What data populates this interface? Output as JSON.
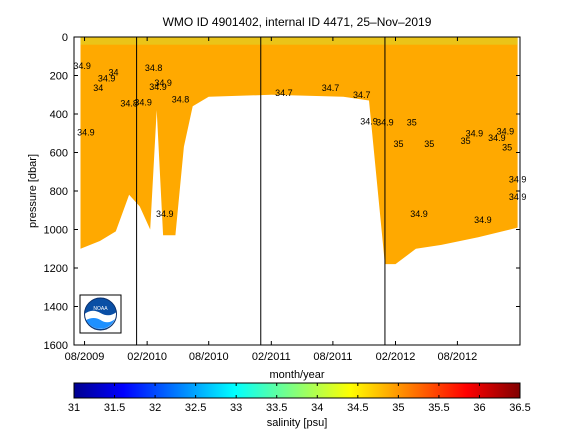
{
  "chart_data": {
    "type": "heatmap",
    "title": "WMO ID 4901402, internal ID 4471, 25–Nov–2019",
    "xlabel": "month/year",
    "ylabel": "pressure [dbar]",
    "x_tick_labels": [
      "08/2009",
      "02/2010",
      "08/2010",
      "02/2011",
      "08/2011",
      "02/2012",
      "08/2012"
    ],
    "x_tick_dates": [
      "2009-08",
      "2010-02",
      "2010-08",
      "2011-02",
      "2011-08",
      "2012-02",
      "2012-08"
    ],
    "xlim": [
      "2009-07",
      "2013-02"
    ],
    "ylim": [
      1600,
      0
    ],
    "y_ticks": [
      0,
      200,
      400,
      600,
      800,
      1000,
      1200,
      1400,
      1600
    ],
    "y_reversed": true,
    "colorbar": {
      "label": "salinity [psu]",
      "ticks": [
        31,
        31.5,
        32,
        32.5,
        33,
        33.5,
        34,
        34.5,
        35,
        35.5,
        36,
        36.5
      ],
      "range": [
        31,
        36.5
      ],
      "colormap": "jet"
    },
    "profile_depth_limit": [
      {
        "date": "2009-07-20",
        "max_pressure": 1100
      },
      {
        "date": "2009-09-15",
        "max_pressure": 1060
      },
      {
        "date": "2009-11-01",
        "max_pressure": 1010
      },
      {
        "date": "2009-12-10",
        "max_pressure": 820
      },
      {
        "date": "2010-01-10",
        "max_pressure": 880
      },
      {
        "date": "2010-02-10",
        "max_pressure": 1000
      },
      {
        "date": "2010-03-01",
        "max_pressure": 380
      },
      {
        "date": "2010-03-20",
        "max_pressure": 1030
      },
      {
        "date": "2010-04-25",
        "max_pressure": 1030
      },
      {
        "date": "2010-05-20",
        "max_pressure": 570
      },
      {
        "date": "2010-06-15",
        "max_pressure": 360
      },
      {
        "date": "2010-08-01",
        "max_pressure": 310
      },
      {
        "date": "2011-02-01",
        "max_pressure": 300
      },
      {
        "date": "2011-09-01",
        "max_pressure": 310
      },
      {
        "date": "2011-11-15",
        "max_pressure": 330
      },
      {
        "date": "2012-01-01",
        "max_pressure": 1180
      },
      {
        "date": "2012-02-01",
        "max_pressure": 1180
      },
      {
        "date": "2012-04-01",
        "max_pressure": 1100
      },
      {
        "date": "2012-06-15",
        "max_pressure": 1080
      },
      {
        "date": "2012-10-01",
        "max_pressure": 1040
      },
      {
        "date": "2013-01-25",
        "max_pressure": 990
      }
    ],
    "deep_water_salinity": 34.9,
    "contour_labels": [
      {
        "text": "34.9",
        "date": "2009-07-25",
        "pressure": 150
      },
      {
        "text": "34.9",
        "date": "2009-10-05",
        "pressure": 215
      },
      {
        "text": "34",
        "date": "2009-10-25",
        "pressure": 185
      },
      {
        "text": "34",
        "date": "2009-09-10",
        "pressure": 265
      },
      {
        "text": "34.8",
        "date": "2009-12-10",
        "pressure": 345
      },
      {
        "text": "34.9",
        "date": "2010-01-20",
        "pressure": 340
      },
      {
        "text": "34.8",
        "date": "2010-02-20",
        "pressure": 160
      },
      {
        "text": "34.9",
        "date": "2010-03-05",
        "pressure": 260
      },
      {
        "text": "34.9",
        "date": "2010-03-20",
        "pressure": 240
      },
      {
        "text": "34.8",
        "date": "2010-05-10",
        "pressure": 325
      },
      {
        "text": "34.9",
        "date": "2009-08-05",
        "pressure": 495
      },
      {
        "text": "34.9",
        "date": "2010-03-25",
        "pressure": 920
      },
      {
        "text": "34.7",
        "date": "2011-03-10",
        "pressure": 290
      },
      {
        "text": "34.7",
        "date": "2011-07-25",
        "pressure": 265
      },
      {
        "text": "34.7",
        "date": "2011-10-25",
        "pressure": 300
      },
      {
        "text": "34.9",
        "date": "2011-11-15",
        "pressure": 440
      },
      {
        "text": "34.9",
        "date": "2012-01-01",
        "pressure": 445
      },
      {
        "text": "35",
        "date": "2012-03-20",
        "pressure": 445
      },
      {
        "text": "35",
        "date": "2012-02-10",
        "pressure": 555
      },
      {
        "text": "35",
        "date": "2012-05-10",
        "pressure": 555
      },
      {
        "text": "35",
        "date": "2012-08-25",
        "pressure": 540
      },
      {
        "text": "34.9",
        "date": "2012-09-20",
        "pressure": 500
      },
      {
        "text": "34.9",
        "date": "2012-12-20",
        "pressure": 490
      },
      {
        "text": "34.9",
        "date": "2012-11-25",
        "pressure": 525
      },
      {
        "text": "35",
        "date": "2012-12-25",
        "pressure": 575
      },
      {
        "text": "34.9",
        "date": "2013-01-25",
        "pressure": 740
      },
      {
        "text": "34.9",
        "date": "2013-01-25",
        "pressure": 830
      },
      {
        "text": "34.9",
        "date": "2012-04-10",
        "pressure": 920
      },
      {
        "text": "34.9",
        "date": "2012-10-15",
        "pressure": 950
      }
    ],
    "vertical_markers": [
      "2010-01-01",
      "2011-01-01",
      "2012-01-01"
    ],
    "grid": false,
    "logo": "noaa-logo"
  }
}
